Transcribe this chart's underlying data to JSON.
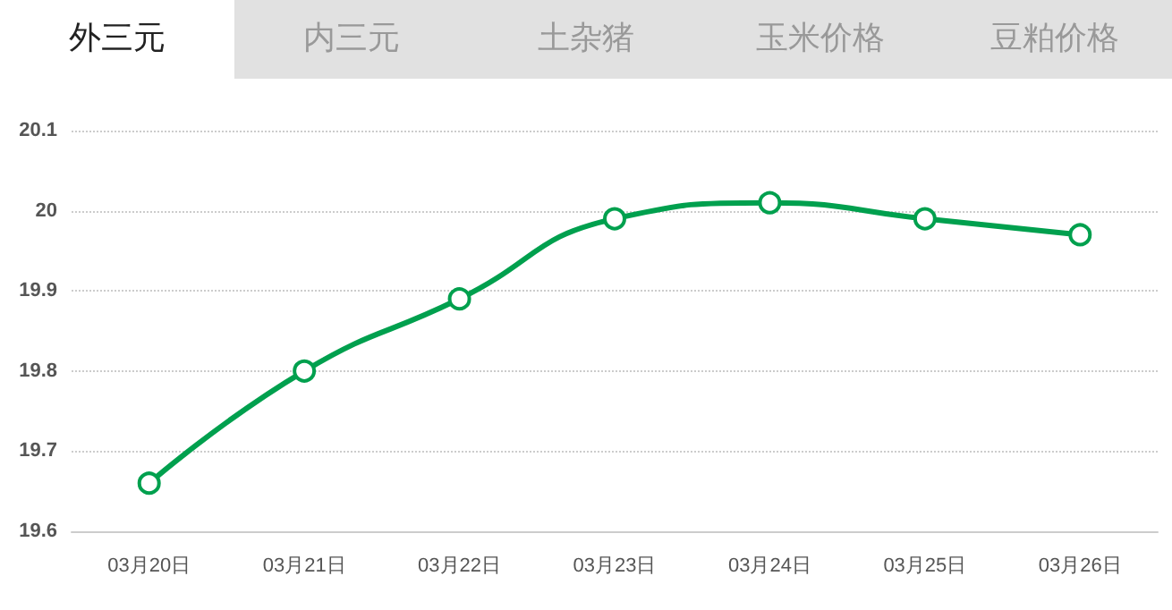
{
  "chart_data": {
    "type": "line",
    "categories": [
      "03月20日",
      "03月21日",
      "03月22日",
      "03月23日",
      "03月24日",
      "03月25日",
      "03月26日"
    ],
    "series": [
      {
        "color": "#00a04e",
        "values": [
          19.66,
          19.8,
          19.89,
          19.99,
          20.01,
          19.99,
          19.97
        ]
      }
    ],
    "ylim": [
      19.6,
      20.1
    ],
    "yticks": [
      19.6,
      19.7,
      19.8,
      19.9,
      20,
      20.1
    ],
    "grid": "y",
    "marker": "circle",
    "line_style": "solid",
    "annotations": [
      "外三元",
      "内三元",
      "土杂猪",
      "玉米价格",
      "豆粕价格"
    ]
  }
}
